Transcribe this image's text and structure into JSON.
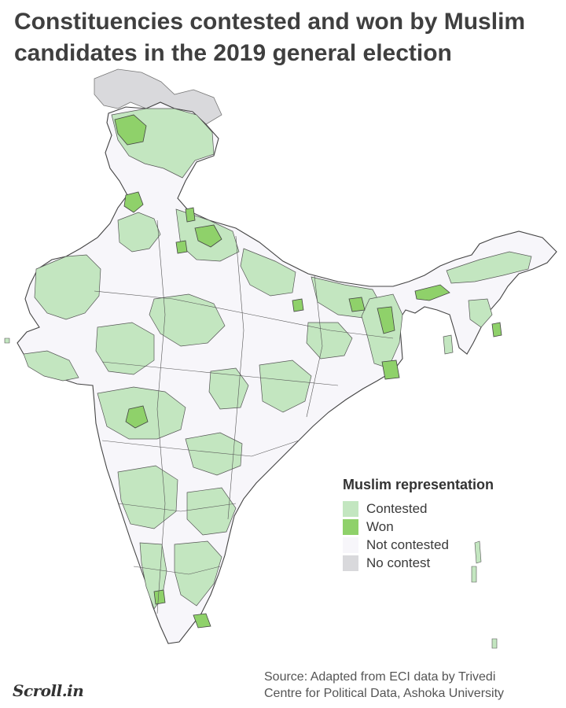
{
  "title": "Constituencies contested and won by Muslim candidates in the 2019 general election",
  "legend": {
    "title": "Muslim representation",
    "items": [
      {
        "label": "Contested",
        "color": "#c3e6c0"
      },
      {
        "label": "Won",
        "color": "#8fd16a"
      },
      {
        "label": "Not contested",
        "color": "#f7f6fa"
      },
      {
        "label": "No contest",
        "color": "#d9d9dc"
      }
    ]
  },
  "colors": {
    "boundary": "#444444",
    "contested": "#c3e6c0",
    "won": "#8fd16a",
    "not_contested": "#f7f6fa",
    "no_contest": "#d9d9dc"
  },
  "source": {
    "line1": "Source: Adapted from ECI data by Trivedi",
    "line2": "Centre for Political Data, Ashoka University"
  },
  "logo": "Scroll.in"
}
